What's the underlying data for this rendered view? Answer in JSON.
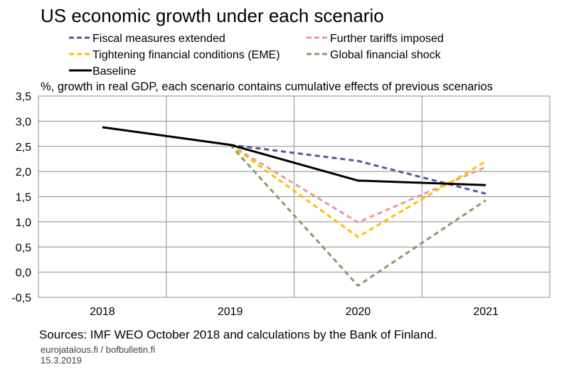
{
  "chart_data": {
    "type": "line",
    "title": "US economic growth under each scenario",
    "ylabel": "%, growth in real GDP, each scenario contains cumulative effects of previous scenarios",
    "xlabel": "",
    "categories": [
      "2018",
      "2019",
      "2020",
      "2021"
    ],
    "ylim": [
      -0.5,
      3.5
    ],
    "yticks": [
      "3,5",
      "3,0",
      "2,5",
      "2,0",
      "1,5",
      "1,0",
      "0,5",
      "0,0",
      "-0,5"
    ],
    "ytick_values": [
      3.5,
      3.0,
      2.5,
      2.0,
      1.5,
      1.0,
      0.5,
      0.0,
      -0.5
    ],
    "grid": true,
    "legend_position": "top",
    "series": [
      {
        "name": "Fiscal measures extended",
        "values": [
          null,
          2.53,
          2.21,
          1.56
        ],
        "color": "#4f5aa0",
        "style": "dashed"
      },
      {
        "name": "Further tariffs imposed",
        "values": [
          null,
          2.53,
          0.99,
          2.09
        ],
        "color": "#e8999a",
        "style": "dashed"
      },
      {
        "name": "Tightening financial conditions (EME)",
        "values": [
          null,
          2.53,
          0.7,
          2.2
        ],
        "color": "#ffc000",
        "style": "dashed"
      },
      {
        "name": "Global financial shock",
        "values": [
          null,
          2.53,
          -0.27,
          1.43
        ],
        "color": "#82a06a",
        "style": "dashed"
      },
      {
        "name": "Baseline",
        "values": [
          2.88,
          2.53,
          1.82,
          1.73
        ],
        "color": "#000000",
        "style": "solid"
      }
    ]
  },
  "footer": {
    "source": "Sources: IMF WEO October 2018 and calculations by the Bank of Finland.",
    "site": "eurojatalous.fi / bofbulletin.fi",
    "date": "15.3.2019"
  }
}
